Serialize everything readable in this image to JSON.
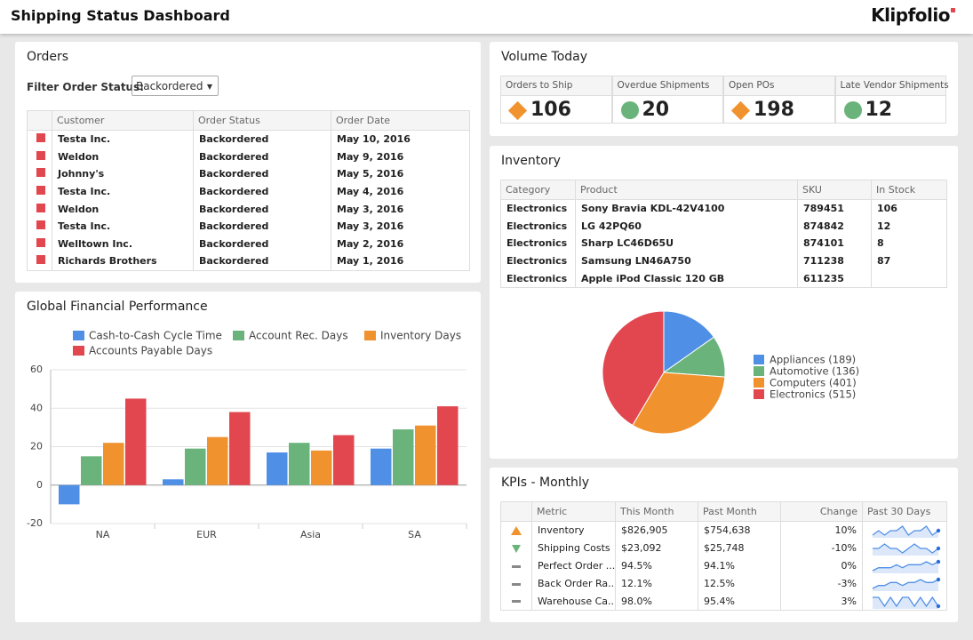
{
  "header": {
    "title": "Shipping Status Dashboard",
    "logo": "Klipfolio"
  },
  "orders": {
    "title": "Orders",
    "filter_label": "Filter Order Status:",
    "filter_value": "Backordered",
    "columns": [
      "Customer",
      "Order Status",
      "Order Date"
    ],
    "rows": [
      [
        "Testa Inc.",
        "Backordered",
        "May 10, 2016"
      ],
      [
        "Weldon",
        "Backordered",
        "May 9, 2016"
      ],
      [
        "Johnny's",
        "Backordered",
        "May 5, 2016"
      ],
      [
        "Testa Inc.",
        "Backordered",
        "May 4, 2016"
      ],
      [
        "Weldon",
        "Backordered",
        "May 3, 2016"
      ],
      [
        "Testa Inc.",
        "Backordered",
        "May 3, 2016"
      ],
      [
        "Welltown Inc.",
        "Backordered",
        "May 2, 2016"
      ],
      [
        "Richards Brothers",
        "Backordered",
        "May 1, 2016"
      ]
    ]
  },
  "volume": {
    "title": "Volume Today",
    "kpis": [
      {
        "label": "Orders to Ship",
        "value": 106,
        "icon": "diamond",
        "color": "#f0922e"
      },
      {
        "label": "Overdue Shipments",
        "value": 20,
        "icon": "circle",
        "color": "#6ab47b"
      },
      {
        "label": "Open POs",
        "value": 198,
        "icon": "diamond",
        "color": "#f0922e"
      },
      {
        "label": "Late Vendor Shipments",
        "value": 12,
        "icon": "circle",
        "color": "#6ab47b"
      }
    ]
  },
  "inventory": {
    "title": "Inventory",
    "columns": [
      "Category",
      "Product",
      "SKU",
      "In Stock"
    ],
    "rows": [
      [
        "Electronics",
        "Sony Bravia KDL-42V4100",
        789451,
        106
      ],
      [
        "Electronics",
        "LG 42PQ60",
        874842,
        12
      ],
      [
        "Electronics",
        "Sharp LC46D65U",
        874101,
        8
      ],
      [
        "Electronics",
        "Samsung LN46A750",
        711238,
        87
      ],
      [
        "Electronics",
        "Apple iPod Classic 120 GB",
        611235,
        null
      ]
    ]
  },
  "kpis": {
    "title": "KPIs - Monthly",
    "columns": [
      "Metric",
      "This Month",
      "Past Month",
      "Change",
      "Past 30 Days"
    ],
    "rows": [
      {
        "status": "warning",
        "metric": "Inventory",
        "this_month": "$826,905",
        "past_month": "$754,638",
        "change": "10%",
        "trend": [
          5,
          6,
          5,
          6,
          6,
          7,
          5,
          6,
          6,
          7,
          5,
          6
        ]
      },
      {
        "status": "down",
        "metric": "Shipping Costs",
        "this_month": "$23,092",
        "past_month": "$25,748",
        "change": "-10%",
        "trend": [
          6,
          6,
          7,
          6,
          6,
          5,
          6,
          7,
          6,
          6,
          5,
          6
        ]
      },
      {
        "status": "neutral",
        "metric": "Perfect Order ...",
        "this_month": "94.5%",
        "past_month": "94.1%",
        "change": "0%",
        "trend": [
          4,
          5,
          5,
          5,
          6,
          5,
          6,
          6,
          6,
          7,
          6,
          7
        ]
      },
      {
        "status": "neutral",
        "metric": "Back Order Ra...",
        "this_month": "12.1%",
        "past_month": "12.5%",
        "change": "-3%",
        "trend": [
          4,
          5,
          5,
          6,
          6,
          5,
          6,
          6,
          7,
          6,
          6,
          7
        ]
      },
      {
        "status": "neutral",
        "metric": "Warehouse Ca...",
        "this_month": "98.0%",
        "past_month": "95.4%",
        "change": "3%",
        "trend": [
          6,
          6,
          5,
          6,
          5,
          6,
          6,
          5,
          6,
          5,
          6,
          5
        ]
      }
    ]
  },
  "chart_data": [
    {
      "type": "bar",
      "title": "Global Financial Performance",
      "categories": [
        "NA",
        "EUR",
        "Asia",
        "SA"
      ],
      "series": [
        {
          "name": "Cash-to-Cash Cycle Time",
          "color": "#4f8fe6",
          "values": [
            -10,
            3,
            17,
            19
          ]
        },
        {
          "name": "Account Rec. Days",
          "color": "#6ab47b",
          "values": [
            15,
            19,
            22,
            29
          ]
        },
        {
          "name": "Inventory Days",
          "color": "#f0922e",
          "values": [
            22,
            25,
            18,
            31
          ]
        },
        {
          "name": "Accounts Payable Days",
          "color": "#e2474f",
          "values": [
            45,
            38,
            26,
            41
          ]
        }
      ],
      "ylim": [
        -20,
        60
      ],
      "yticks": [
        -20,
        0,
        20,
        40,
        60
      ],
      "grid": true
    },
    {
      "type": "pie",
      "categories": [
        "Appliances (189)",
        "Automotive (136)",
        "Computers (401)",
        "Electronics (515)"
      ],
      "values": [
        189,
        136,
        401,
        515
      ],
      "colors": [
        "#4f8fe6",
        "#6ab47b",
        "#f0922e",
        "#e2474f"
      ]
    }
  ]
}
